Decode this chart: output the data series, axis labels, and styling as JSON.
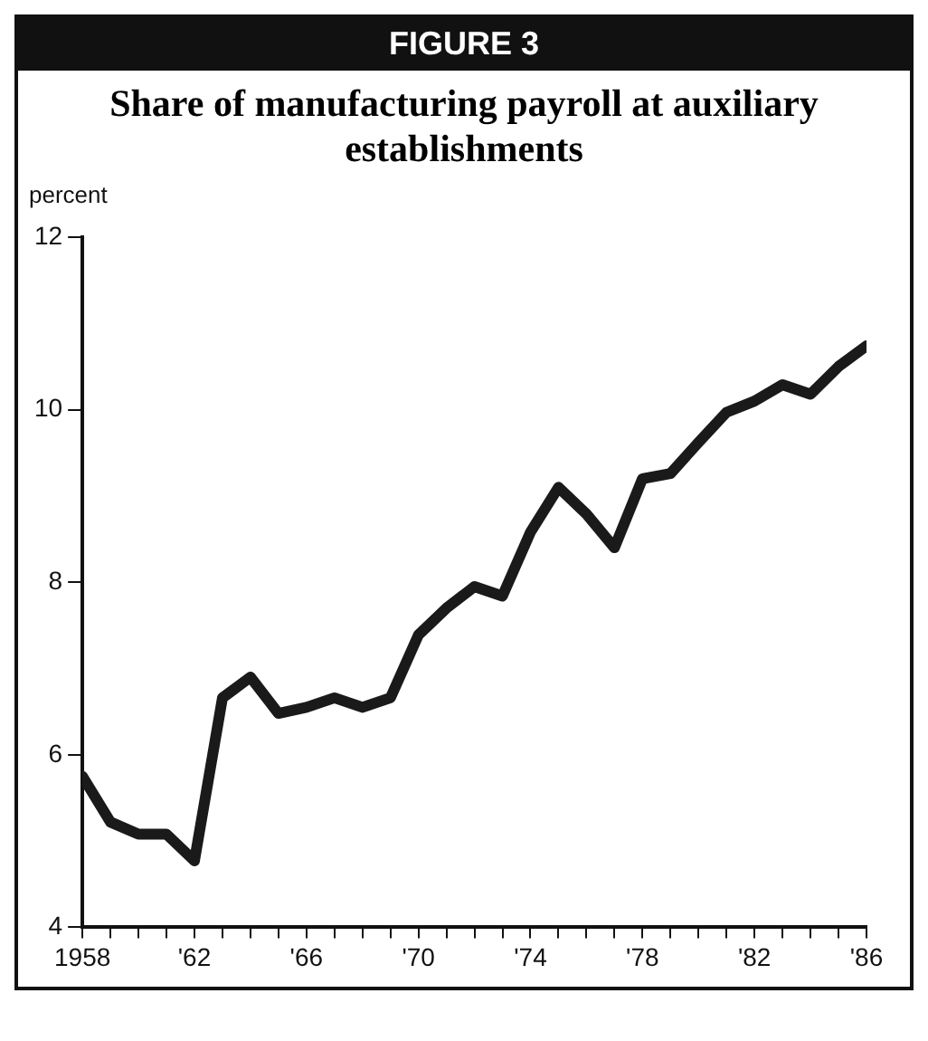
{
  "chart_data": {
    "type": "line",
    "annotations": [
      "FIGURE 3"
    ],
    "title": "Share of manufacturing payroll at auxiliary establishments",
    "ylabel": "percent",
    "x": [
      1958,
      1959,
      1960,
      1961,
      1962,
      1963,
      1964,
      1965,
      1966,
      1967,
      1968,
      1969,
      1970,
      1971,
      1972,
      1973,
      1974,
      1975,
      1976,
      1977,
      1978,
      1979,
      1980,
      1981,
      1982,
      1983,
      1984,
      1985,
      1986
    ],
    "series": [
      {
        "color": "#1a1a1a",
        "values": [
          5.75,
          5.22,
          5.08,
          5.08,
          4.77,
          6.66,
          6.9,
          6.48,
          6.55,
          6.66,
          6.55,
          6.66,
          7.39,
          7.7,
          7.95,
          7.84,
          8.58,
          9.1,
          8.79,
          8.4,
          9.2,
          9.26,
          9.62,
          9.97,
          10.1,
          10.29,
          10.18,
          10.5,
          10.74
        ]
      }
    ],
    "xlim": [
      1958,
      1986
    ],
    "xticks": [
      {
        "value": 1958,
        "label": "1958"
      },
      {
        "value": 1959,
        "label": null
      },
      {
        "value": 1960,
        "label": null
      },
      {
        "value": 1961,
        "label": null
      },
      {
        "value": 1962,
        "label": "'62"
      },
      {
        "value": 1963,
        "label": null
      },
      {
        "value": 1964,
        "label": null
      },
      {
        "value": 1965,
        "label": null
      },
      {
        "value": 1966,
        "label": "'66"
      },
      {
        "value": 1967,
        "label": null
      },
      {
        "value": 1968,
        "label": null
      },
      {
        "value": 1969,
        "label": null
      },
      {
        "value": 1970,
        "label": "'70"
      },
      {
        "value": 1971,
        "label": null
      },
      {
        "value": 1972,
        "label": null
      },
      {
        "value": 1973,
        "label": null
      },
      {
        "value": 1974,
        "label": "'74"
      },
      {
        "value": 1975,
        "label": null
      },
      {
        "value": 1976,
        "label": null
      },
      {
        "value": 1977,
        "label": null
      },
      {
        "value": 1978,
        "label": "'78"
      },
      {
        "value": 1979,
        "label": null
      },
      {
        "value": 1980,
        "label": null
      },
      {
        "value": 1981,
        "label": null
      },
      {
        "value": 1982,
        "label": "'82"
      },
      {
        "value": 1983,
        "label": null
      },
      {
        "value": 1984,
        "label": null
      },
      {
        "value": 1985,
        "label": null
      },
      {
        "value": 1986,
        "label": "'86"
      }
    ],
    "ylim": [
      4,
      12
    ],
    "yticks": [
      4,
      6,
      8,
      10,
      12
    ],
    "grid": false,
    "legend": false,
    "marker": "none",
    "line_style": "solid"
  }
}
